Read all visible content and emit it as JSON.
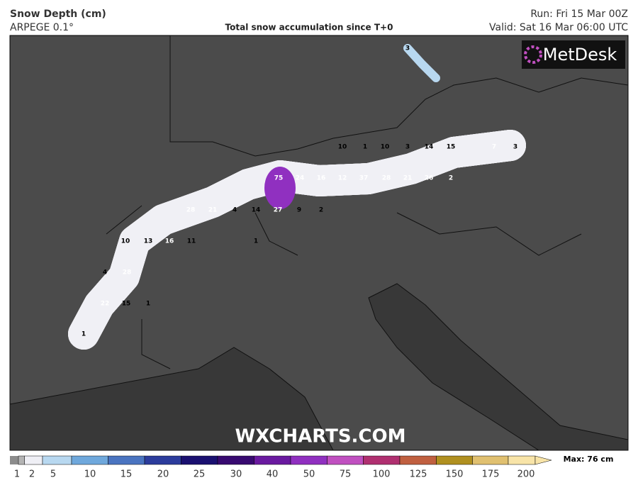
{
  "header": {
    "title": "Snow Depth (cm)",
    "model": "ARPEGE 0.1°",
    "description": "Total snow accumulation since T+0",
    "run": "Run: Fri 15 Mar 00Z",
    "valid": "Valid: Sat 16 Mar 06:00 UTC"
  },
  "logo": "MetDesk",
  "watermark": "WXCHARTS.COM",
  "legend": {
    "ticks": [
      1,
      2,
      5,
      10,
      15,
      20,
      25,
      30,
      40,
      50,
      75,
      100,
      125,
      150,
      175,
      200
    ],
    "colors": [
      "#b4b4b4",
      "#efeff5",
      "#b8d8f0",
      "#6fa8dc",
      "#4a74c0",
      "#2c3c9c",
      "#1a1070",
      "#380a70",
      "#6a1aa0",
      "#9030c0",
      "#c050c0",
      "#b03070",
      "#c06040",
      "#b09020",
      "#e0c070",
      "#f8e4a8"
    ],
    "max_label": "Max: 76 cm"
  },
  "point_labels": [
    3,
    10,
    1,
    10,
    3,
    14,
    15,
    7,
    3,
    75,
    24,
    16,
    12,
    37,
    28,
    21,
    26,
    2,
    28,
    21,
    4,
    14,
    27,
    9,
    2,
    10,
    13,
    16,
    11,
    1,
    4,
    28,
    22,
    15,
    1,
    1
  ]
}
